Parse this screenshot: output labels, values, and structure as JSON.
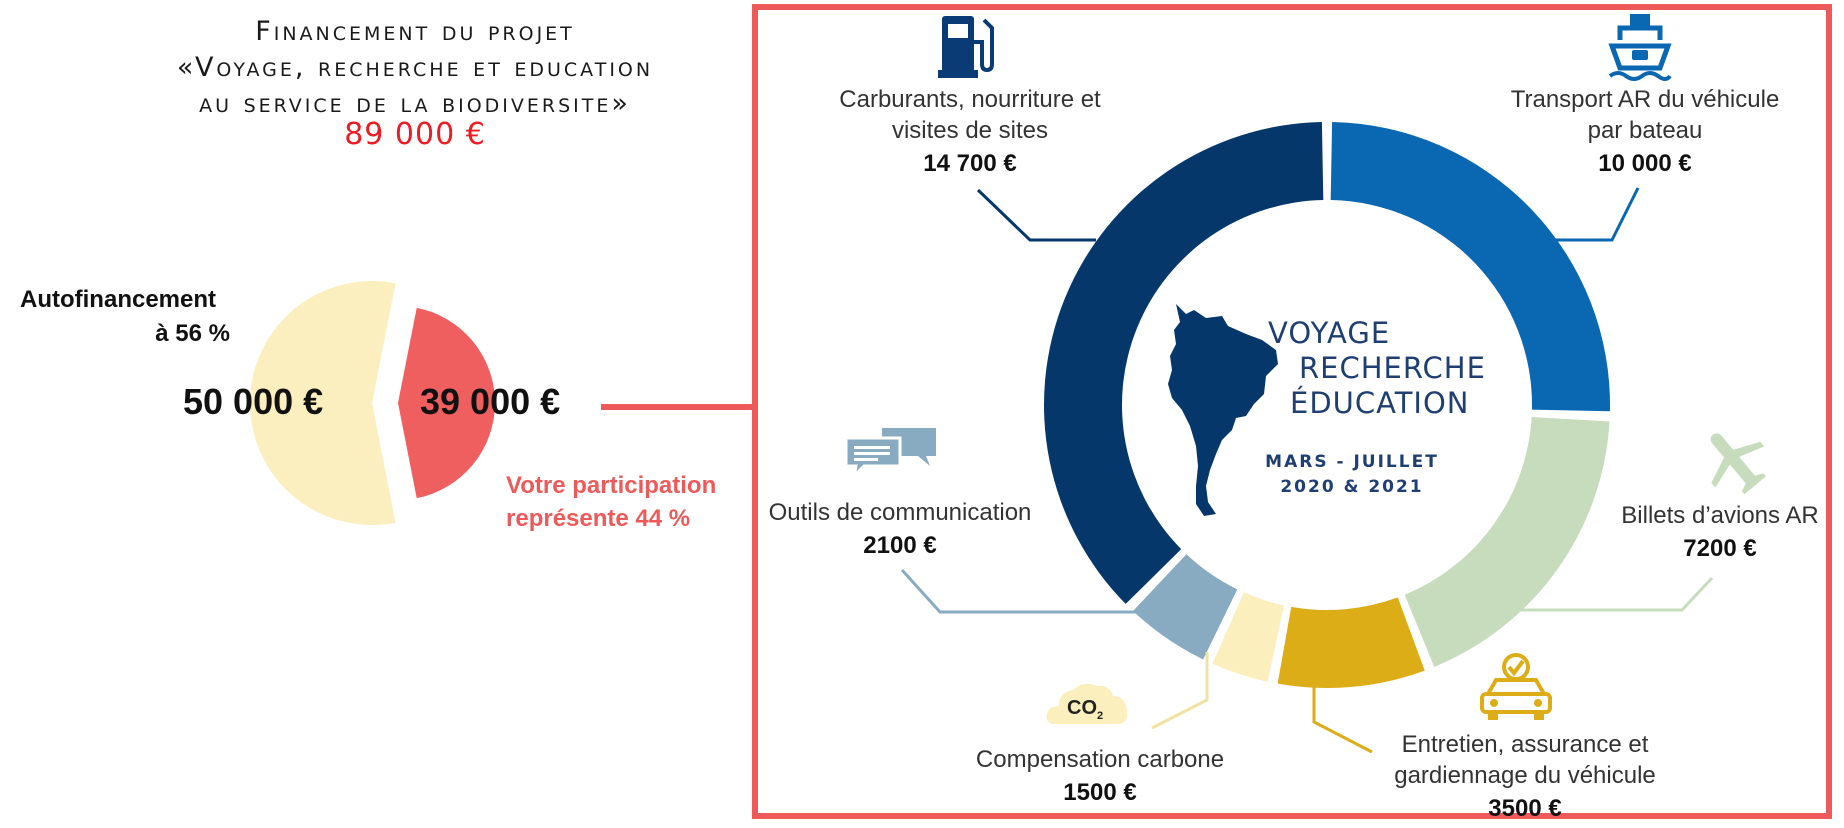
{
  "header": {
    "title_lines": [
      "Financement du projet",
      "«Voyage, recherche et education",
      "au service de la biodiversite»"
    ],
    "total": "89 000 €"
  },
  "funding": {
    "autofinancement_label_1": "Autofinancement",
    "autofinancement_label_2": "à 56 %",
    "self_value": "50 000 €",
    "participation_value": "39 000 €",
    "participation_label_1": "Votre participation",
    "participation_label_2": "représente 44 %"
  },
  "center": {
    "line1": "VOYAGE",
    "line2": "RECHERCHE",
    "line3": "ÉDUCATION",
    "dates1": "MARS - JUILLET",
    "dates2": "2020 & 2021"
  },
  "chart_data": [
    {
      "type": "pie",
      "title": "",
      "labels": [
        "Autofinancement",
        "Votre participation"
      ],
      "values": [
        50000,
        39000
      ],
      "percent": [
        56,
        44
      ],
      "colors": [
        "#fbefbf",
        "#f05f5f"
      ]
    },
    {
      "type": "pie",
      "variant": "donut",
      "title": "",
      "labels": [
        "Transport AR du véhicule par bateau",
        "Billets d’avions AR",
        "Entretien, assurance et gardiennage du véhicule",
        "Compensation carbone",
        "Outils de communication",
        "Carburants, nourriture et visites de sites"
      ],
      "values": [
        10000,
        7200,
        3500,
        1500,
        2100,
        14700
      ],
      "display_values": [
        "10 000 €",
        "7200 €",
        "3500 €",
        "1500 €",
        "2100 €",
        "14 700 €"
      ],
      "colors": [
        "#0a67b2",
        "#c6dcbc",
        "#dcad17",
        "#faefbd",
        "#89abc1",
        "#06376a"
      ],
      "icons": [
        "ship-icon",
        "airplane-icon",
        "car-check-icon",
        "co2-cloud-icon",
        "chat-bubbles-icon",
        "fuel-pump-icon"
      ],
      "total": 39000
    }
  ]
}
